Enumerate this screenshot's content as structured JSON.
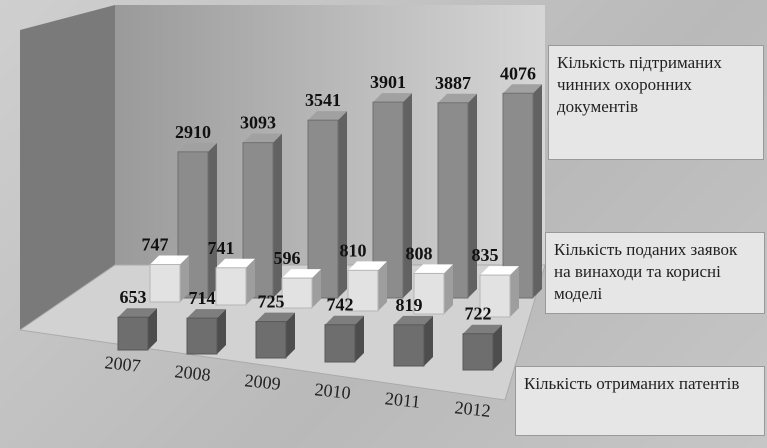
{
  "chart_data": {
    "type": "bar3d",
    "categories": [
      "2007",
      "2008",
      "2009",
      "2010",
      "2011",
      "2012"
    ],
    "ylim": [
      0,
      4500
    ],
    "series": [
      {
        "name": "Кількість підтриманих чинних охоронних документів",
        "color": "#8c8c8c",
        "values": [
          2910,
          3093,
          3541,
          3901,
          3887,
          4076
        ]
      },
      {
        "name": "Кількість поданих заявок на винаходи та корисні моделі",
        "color": "#e2e2e2",
        "values": [
          747,
          741,
          596,
          810,
          808,
          835
        ]
      },
      {
        "name": "Кількість отриманих патентів",
        "color": "#6e6e6e",
        "values": [
          653,
          714,
          725,
          742,
          819,
          722
        ]
      }
    ]
  }
}
